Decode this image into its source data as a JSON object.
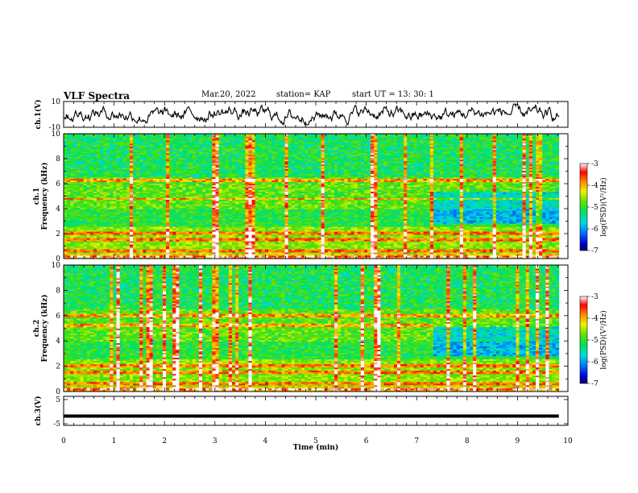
{
  "header": {
    "title": "VLF Spectra",
    "date": "Mar.20, 2022",
    "station": "station= KAP",
    "start": "start UT = 13: 30: 1"
  },
  "chart_data": [
    {
      "type": "line",
      "name": "ch1-waveform",
      "ylabel": "ch.1(V)",
      "ylim": [
        -10,
        10
      ],
      "yticks": [
        "10",
        "-10"
      ],
      "xlim": [
        0,
        10
      ],
      "trace_xrange": [
        0,
        9.82
      ],
      "amplitude_range": [
        -8,
        8
      ]
    },
    {
      "type": "heatmap",
      "name": "ch1-spectrogram",
      "ylabel": "ch.1\nFrequency (kHz)",
      "ylabel_line1": "ch.1",
      "ylabel_line2": "Frequency (kHz)",
      "ylim": [
        0,
        10
      ],
      "yticks": [
        "0",
        "2",
        "4",
        "6",
        "8",
        "10"
      ],
      "xlim": [
        0,
        10
      ],
      "data_xrange": [
        0,
        9.82
      ],
      "colorbar": {
        "label": "log(PSD)(V²/Hz)",
        "min": -7,
        "max": -3,
        "ticks": [
          "-3",
          "-4",
          "-5",
          "-6",
          "-7"
        ]
      },
      "features": {
        "band_shift_time_min": 7.3,
        "strong_bands_khz": [
          0.2,
          0.6,
          1.5,
          2.1,
          4.8,
          6.3
        ]
      }
    },
    {
      "type": "heatmap",
      "name": "ch2-spectrogram",
      "ylabel_line1": "ch.2",
      "ylabel_line2": "Frequency (kHz)",
      "ylim": [
        0,
        10
      ],
      "yticks": [
        "0",
        "2",
        "4",
        "6",
        "8",
        "10"
      ],
      "xlim": [
        0,
        10
      ],
      "data_xrange": [
        0,
        9.82
      ],
      "colorbar": {
        "label": "log(PSD)(V²/Hz)",
        "min": -7,
        "max": -3,
        "ticks": [
          "-3",
          "-4",
          "-5",
          "-6",
          "-7"
        ]
      },
      "features": {
        "band_shift_time_min": 7.3,
        "strong_bands_khz": [
          0.2,
          0.6,
          1.5,
          2.1,
          5.3,
          6.0
        ]
      }
    },
    {
      "type": "line",
      "name": "ch3-waveform",
      "ylabel": "ch.3(V)",
      "ylim": [
        -5,
        5
      ],
      "yticks": [
        "5",
        "-5"
      ],
      "xlim": [
        0,
        10
      ],
      "trace_center": -1.8,
      "trace_halfwidth": 0.55
    }
  ],
  "xaxis": {
    "label": "Time (min)",
    "ticks": [
      "0",
      "1",
      "2",
      "3",
      "4",
      "5",
      "6",
      "7",
      "8",
      "9",
      "10"
    ]
  },
  "colors": {
    "trace": "#000000"
  }
}
